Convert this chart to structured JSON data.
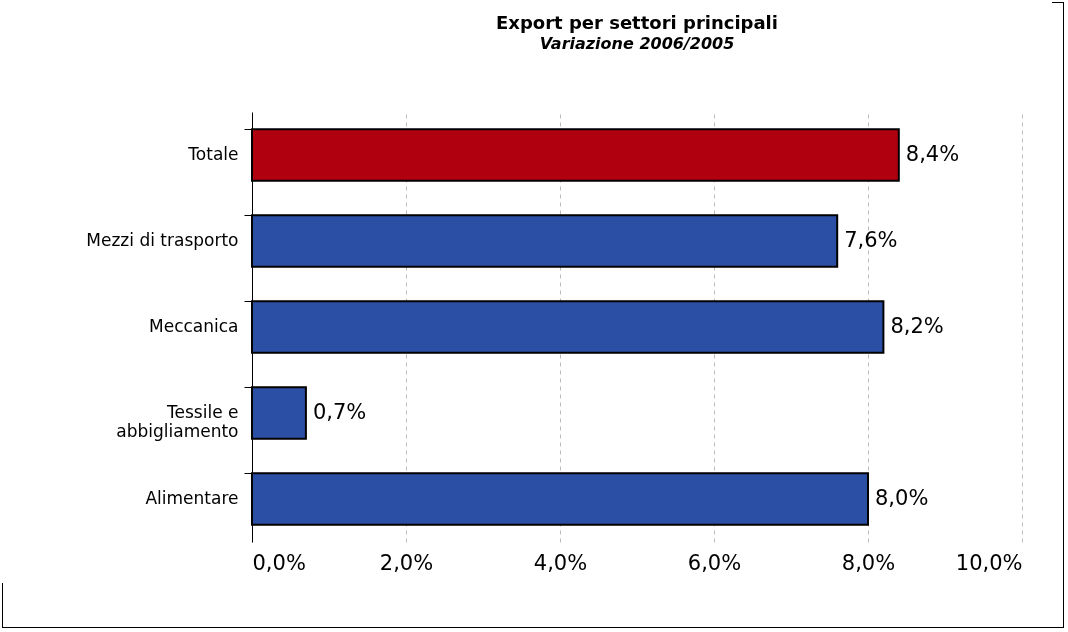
{
  "chart_data": {
    "type": "bar",
    "orientation": "horizontal",
    "title": "Export per settori principali",
    "subtitle": "Variazione 2006/2005",
    "categories": [
      "Totale",
      "Mezzi di trasporto",
      "Meccanica",
      "Tessile e abbigliamento",
      "Alimentare"
    ],
    "values": [
      8.4,
      7.6,
      8.2,
      0.7,
      8.0
    ],
    "colors": [
      "#b00010",
      "#2c4fa6",
      "#2c4fa6",
      "#2c4fa6",
      "#2c4fa6"
    ],
    "value_labels": [
      "8,4%",
      "7,6%",
      "8,2%",
      "0,7%",
      "8,0%"
    ],
    "xlim": [
      0,
      10
    ],
    "xticks": [
      {
        "value": 0,
        "label": "0,0%"
      },
      {
        "value": 2,
        "label": "2,0%"
      },
      {
        "value": 4,
        "label": "4,0%"
      },
      {
        "value": 6,
        "label": "6,0%"
      },
      {
        "value": 8,
        "label": "8,0%"
      },
      {
        "value": 10,
        "label": "10,0%"
      }
    ],
    "grid": "x"
  }
}
